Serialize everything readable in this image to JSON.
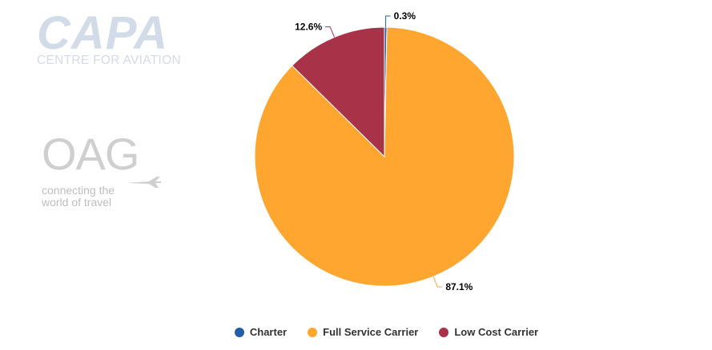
{
  "logos": {
    "capa_main": "CAPA",
    "capa_sub": "CENTRE FOR AVIATION",
    "oag_main": "OAG",
    "oag_tag_line1": "connecting the",
    "oag_tag_line2": "world of travel"
  },
  "chart_data": {
    "type": "pie",
    "categories": [
      "Charter",
      "Full Service Carrier",
      "Low Cost Carrier"
    ],
    "values": [
      0.3,
      87.1,
      12.6
    ],
    "colors": [
      "#1f5fa8",
      "#ffa630",
      "#a83247"
    ],
    "data_labels": [
      "0.3%",
      "87.1%",
      "12.6%"
    ],
    "legend_position": "bottom"
  }
}
